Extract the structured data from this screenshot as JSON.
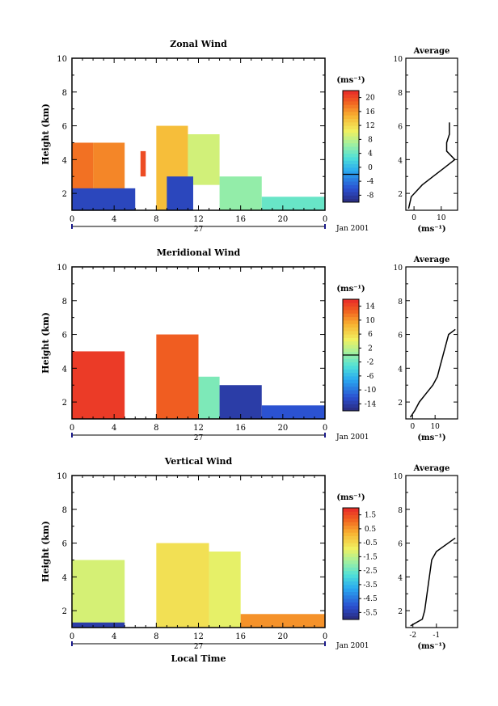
{
  "chart_data": [
    {
      "type": "heatmap",
      "title": "Zonal Wind",
      "ylabel": "Height (km)",
      "xlim": [
        0,
        24
      ],
      "ylim": [
        1,
        10
      ],
      "xticks": [
        "0",
        "4",
        "8",
        "12",
        "16",
        "20",
        "0"
      ],
      "yticks": [
        "2",
        "4",
        "6",
        "8",
        "10"
      ],
      "date_day": "27",
      "date_label": "Jan 2001",
      "colorbar_unit": "(ms⁻¹)",
      "colorbar_ticks": [
        "20",
        "16",
        "12",
        "8",
        "4",
        "0",
        "-4",
        "-8"
      ],
      "colorbar_range": [
        -10,
        22
      ],
      "regions": [
        {
          "x": [
            0,
            2
          ],
          "y": [
            1,
            5
          ],
          "value": 18
        },
        {
          "x": [
            2,
            5
          ],
          "y": [
            1,
            5
          ],
          "value": 17
        },
        {
          "x": [
            0,
            6
          ],
          "y": [
            1,
            2.3
          ],
          "value": -7
        },
        {
          "x": [
            6.5,
            7
          ],
          "y": [
            3,
            4.5
          ],
          "value": 20
        },
        {
          "x": [
            8,
            11
          ],
          "y": [
            1,
            6
          ],
          "value": 14
        },
        {
          "x": [
            11,
            14
          ],
          "y": [
            2.5,
            5.5
          ],
          "value": 9
        },
        {
          "x": [
            14,
            18
          ],
          "y": [
            1,
            3
          ],
          "value": 6
        },
        {
          "x": [
            18,
            24
          ],
          "y": [
            1,
            1.8
          ],
          "value": 4
        },
        {
          "x": [
            9,
            11.5
          ],
          "y": [
            1,
            3
          ],
          "value": -7
        }
      ],
      "average_profile": {
        "title": "Average",
        "xlabel": "(ms⁻¹)",
        "xticks": [
          "0",
          "10"
        ],
        "xlim": [
          -3,
          16
        ],
        "ylim": [
          1,
          10
        ],
        "height": [
          1.1,
          1.8,
          2.5,
          3.0,
          3.5,
          4.0,
          4.5,
          5.0,
          5.5,
          6.2
        ],
        "wind": [
          -2,
          -1,
          3,
          7,
          11,
          15,
          12,
          12,
          13,
          13
        ]
      }
    },
    {
      "type": "heatmap",
      "title": "Meridional Wind",
      "ylabel": "Height (km)",
      "xlim": [
        0,
        24
      ],
      "ylim": [
        1,
        10
      ],
      "xticks": [
        "0",
        "4",
        "8",
        "12",
        "16",
        "20",
        "0"
      ],
      "yticks": [
        "2",
        "4",
        "6",
        "8",
        "10"
      ],
      "date_day": "27",
      "date_label": "Jan 2001",
      "colorbar_unit": "(ms⁻¹)",
      "colorbar_ticks": [
        "14",
        "10",
        "6",
        "2",
        "-2",
        "-6",
        "-10",
        "-14"
      ],
      "colorbar_range": [
        -16,
        16
      ],
      "regions": [
        {
          "x": [
            0,
            5
          ],
          "y": [
            1,
            5
          ],
          "value": 15
        },
        {
          "x": [
            8,
            12
          ],
          "y": [
            1,
            6
          ],
          "value": 13
        },
        {
          "x": [
            12,
            14
          ],
          "y": [
            1,
            3.5
          ],
          "value": -1
        },
        {
          "x": [
            14,
            18
          ],
          "y": [
            1,
            3
          ],
          "value": -14
        },
        {
          "x": [
            18,
            24
          ],
          "y": [
            1,
            1.8
          ],
          "value": -12
        }
      ],
      "average_profile": {
        "title": "Average",
        "xlabel": "(ms⁻¹)",
        "xticks": [
          "0",
          "10"
        ],
        "xlim": [
          -3,
          20
        ],
        "ylim": [
          1,
          10
        ],
        "height": [
          1.1,
          1.5,
          2.0,
          2.5,
          3.0,
          3.5,
          4.0,
          4.5,
          5.0,
          5.5,
          6.0,
          6.3
        ],
        "wind": [
          -1,
          1,
          3,
          6,
          9,
          11,
          12,
          13,
          14,
          15,
          16,
          19
        ]
      }
    },
    {
      "type": "heatmap",
      "title": "Vertical Wind",
      "ylabel": "Height (km)",
      "xlabel": "Local Time",
      "xlim": [
        0,
        24
      ],
      "ylim": [
        1,
        10
      ],
      "xticks": [
        "0",
        "4",
        "8",
        "12",
        "16",
        "20",
        "0"
      ],
      "yticks": [
        "2",
        "4",
        "6",
        "8",
        "10"
      ],
      "date_day": "27",
      "date_label": "Jan 2001",
      "colorbar_unit": "(ms⁻¹)",
      "colorbar_ticks": [
        "1.5",
        "0.5",
        "-0.5",
        "-1.5",
        "-2.5",
        "-3.5",
        "-4.5",
        "-5.5"
      ],
      "colorbar_range": [
        -6,
        2
      ],
      "regions": [
        {
          "x": [
            0,
            5
          ],
          "y": [
            1,
            5
          ],
          "value": -1.2
        },
        {
          "x": [
            0,
            5
          ],
          "y": [
            1,
            1.3
          ],
          "value": -5.5
        },
        {
          "x": [
            8,
            13
          ],
          "y": [
            1,
            6
          ],
          "value": -0.6
        },
        {
          "x": [
            13,
            16
          ],
          "y": [
            1,
            5.5
          ],
          "value": -1.0
        },
        {
          "x": [
            16,
            24
          ],
          "y": [
            1,
            1.8
          ],
          "value": 0.6
        }
      ],
      "average_profile": {
        "title": "Average",
        "xlabel": "(ms⁻¹)",
        "xticks": [
          "-2",
          "-1"
        ],
        "xlim": [
          -2.3,
          -0.1
        ],
        "ylim": [
          1,
          10
        ],
        "height": [
          1.1,
          1.5,
          2.0,
          3.0,
          4.0,
          5.0,
          5.5,
          6.3
        ],
        "wind": [
          -2.1,
          -1.6,
          -1.5,
          -1.4,
          -1.3,
          -1.2,
          -1.0,
          -0.2
        ]
      }
    }
  ]
}
